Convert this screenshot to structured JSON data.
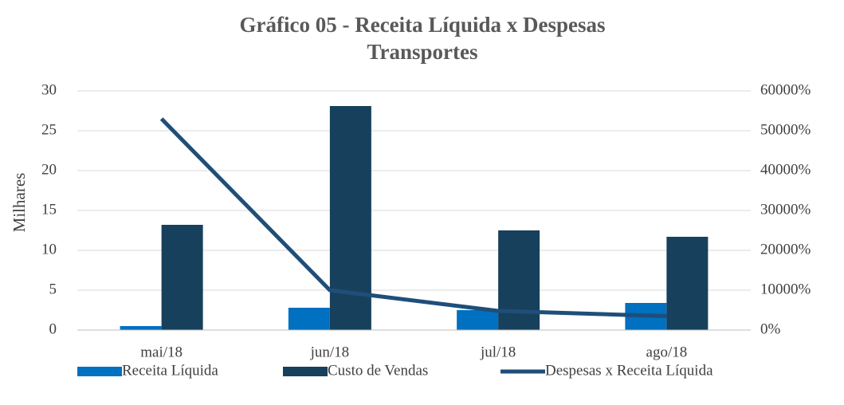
{
  "chart_data": {
    "type": "bar_line",
    "title": "Gráfico 05 - Receita Líquida x Despesas Transportes",
    "y_label": "Milhares",
    "categories": [
      "mai/18",
      "jun/18",
      "jul/18",
      "ago/18"
    ],
    "series": [
      {
        "name": "Receita Líquida",
        "type": "bar",
        "color": "#0070c0",
        "values": [
          0.5,
          2.8,
          2.5,
          3.4
        ]
      },
      {
        "name": "Custo de Vendas",
        "type": "bar",
        "color": "#17405c",
        "values": [
          13.2,
          28.1,
          12.5,
          11.7
        ]
      },
      {
        "name": "Despesas x Receita Líquida",
        "type": "line",
        "axis": "y2",
        "color": "#1f4e79",
        "values": [
          53000,
          10000,
          4800,
          3500
        ]
      }
    ],
    "ylim": [
      0,
      30
    ],
    "yticks": [
      0,
      5,
      10,
      15,
      20,
      25,
      30
    ],
    "y2lim": [
      0,
      60000
    ],
    "y2ticks": [
      {
        "value": 0,
        "label": "0%"
      },
      {
        "value": 10000,
        "label": "10000%"
      },
      {
        "value": 20000,
        "label": "20000%"
      },
      {
        "value": 30000,
        "label": "30000%"
      },
      {
        "value": 40000,
        "label": "40000%"
      },
      {
        "value": 50000,
        "label": "50000%"
      },
      {
        "value": 60000,
        "label": "60000%"
      }
    ],
    "grid": true,
    "legend": "bottom"
  }
}
